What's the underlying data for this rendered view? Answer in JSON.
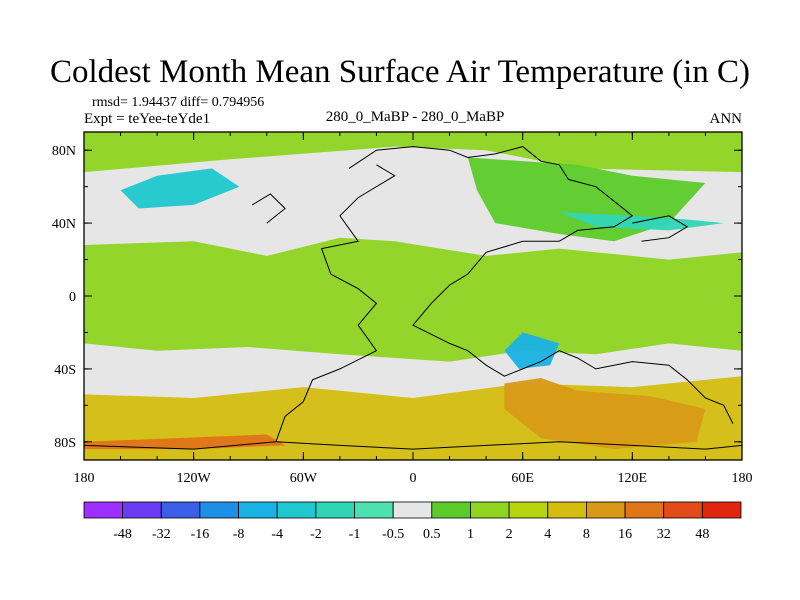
{
  "chart_data": {
    "type": "heatmap",
    "title": "Coldest Month Mean Surface Air Temperature (in C)",
    "stats": "rmsd= 1.94437 diff= 0.794956",
    "experiment": "Expt = teYee-teYde1",
    "center_label": "280_0_MaBP - 280_0_MaBP",
    "season": "ANN",
    "x_ticks": [
      {
        "value": -180,
        "label": "180"
      },
      {
        "value": -120,
        "label": "120W"
      },
      {
        "value": -60,
        "label": "60W"
      },
      {
        "value": 0,
        "label": "0"
      },
      {
        "value": 60,
        "label": "60E"
      },
      {
        "value": 120,
        "label": "120E"
      },
      {
        "value": 180,
        "label": "180"
      }
    ],
    "y_ticks": [
      {
        "value": 80,
        "label": "80N"
      },
      {
        "value": 40,
        "label": "40N"
      },
      {
        "value": 0,
        "label": "0"
      },
      {
        "value": -40,
        "label": "40S"
      },
      {
        "value": -80,
        "label": "80S"
      }
    ],
    "xlim": [
      -180,
      180
    ],
    "ylim": [
      -90,
      90
    ],
    "colorbar": {
      "labels": [
        "-48",
        "-32",
        "-16",
        "-8",
        "-4",
        "-2",
        "-1",
        "-0.5",
        "0.5",
        "1",
        "2",
        "4",
        "8",
        "16",
        "32",
        "48"
      ],
      "colors": [
        "#9b30ff",
        "#6a3df2",
        "#3a5ee8",
        "#1e8fe6",
        "#19b2e5",
        "#1fc7cf",
        "#2fd6b6",
        "#4ee0b0",
        "#e6e6e6",
        "#5ccc2a",
        "#8ed420",
        "#b7d40f",
        "#d4bd10",
        "#d89a16",
        "#e07419",
        "#e24a18",
        "#e0260f"
      ]
    },
    "regions": [
      {
        "label": "Northern ocean band",
        "color": "#8ed420",
        "points": [
          [
            -180,
            90
          ],
          [
            180,
            90
          ],
          [
            180,
            68
          ],
          [
            90,
            70
          ],
          [
            40,
            80
          ],
          [
            -10,
            82
          ],
          [
            -100,
            75
          ],
          [
            -180,
            68
          ]
        ]
      },
      {
        "label": "Tropical ocean band",
        "color": "#8ed420",
        "points": [
          [
            -180,
            28
          ],
          [
            -120,
            30
          ],
          [
            -80,
            22
          ],
          [
            -40,
            32
          ],
          [
            -10,
            30
          ],
          [
            40,
            22
          ],
          [
            80,
            26
          ],
          [
            140,
            20
          ],
          [
            180,
            24
          ],
          [
            180,
            -30
          ],
          [
            140,
            -26
          ],
          [
            100,
            -32
          ],
          [
            60,
            -30
          ],
          [
            20,
            -36
          ],
          [
            -40,
            -32
          ],
          [
            -90,
            -28
          ],
          [
            -140,
            -30
          ],
          [
            -180,
            -26
          ]
        ]
      },
      {
        "label": "Southern warm band",
        "color": "#d4bd10",
        "points": [
          [
            -180,
            -54
          ],
          [
            -120,
            -56
          ],
          [
            -60,
            -50
          ],
          [
            0,
            -56
          ],
          [
            60,
            -48
          ],
          [
            120,
            -50
          ],
          [
            180,
            -44
          ],
          [
            180,
            -90
          ],
          [
            -180,
            -90
          ]
        ]
      },
      {
        "label": "Southern hot patch",
        "color": "#d89a16",
        "points": [
          [
            50,
            -48
          ],
          [
            70,
            -45
          ],
          [
            90,
            -52
          ],
          [
            130,
            -55
          ],
          [
            160,
            -62
          ],
          [
            155,
            -80
          ],
          [
            110,
            -84
          ],
          [
            70,
            -78
          ],
          [
            50,
            -62
          ]
        ]
      },
      {
        "label": "Antarctic edge",
        "color": "#e07419",
        "points": [
          [
            -180,
            -80
          ],
          [
            -80,
            -76
          ],
          [
            -70,
            -82
          ],
          [
            -120,
            -84
          ],
          [
            -180,
            -84
          ]
        ]
      },
      {
        "label": "Pacific cold patch",
        "color": "#1fc7cf",
        "points": [
          [
            -160,
            58
          ],
          [
            -140,
            66
          ],
          [
            -110,
            70
          ],
          [
            -95,
            60
          ],
          [
            -120,
            50
          ],
          [
            -150,
            48
          ]
        ]
      },
      {
        "label": "Indian cold patch",
        "color": "#19b2e5",
        "points": [
          [
            50,
            -30
          ],
          [
            60,
            -20
          ],
          [
            80,
            -26
          ],
          [
            75,
            -38
          ],
          [
            58,
            -40
          ]
        ]
      },
      {
        "label": "Asian warm continent",
        "color": "#5ccc2a",
        "points": [
          [
            30,
            76
          ],
          [
            90,
            72
          ],
          [
            120,
            66
          ],
          [
            160,
            62
          ],
          [
            140,
            40
          ],
          [
            110,
            30
          ],
          [
            80,
            34
          ],
          [
            45,
            40
          ],
          [
            35,
            58
          ]
        ]
      },
      {
        "label": "North Atlantic cold streak",
        "color": "#2fd6b6",
        "points": [
          [
            80,
            46
          ],
          [
            120,
            44
          ],
          [
            150,
            42
          ],
          [
            170,
            40
          ],
          [
            140,
            36
          ],
          [
            100,
            38
          ]
        ]
      }
    ],
    "coastlines": [
      [
        [
          -20,
          72
        ],
        [
          -10,
          66
        ],
        [
          -30,
          54
        ],
        [
          -40,
          44
        ],
        [
          -30,
          30
        ],
        [
          -50,
          26
        ],
        [
          -45,
          12
        ],
        [
          -30,
          4
        ],
        [
          -20,
          -4
        ],
        [
          -30,
          -16
        ],
        [
          -20,
          -30
        ],
        [
          -40,
          -40
        ],
        [
          -55,
          -46
        ],
        [
          -60,
          -58
        ],
        [
          -70,
          -66
        ],
        [
          -75,
          -80
        ]
      ],
      [
        [
          -35,
          70
        ],
        [
          -20,
          80
        ],
        [
          0,
          82
        ],
        [
          20,
          80
        ],
        [
          30,
          76
        ],
        [
          45,
          78
        ],
        [
          60,
          82
        ],
        [
          70,
          74
        ],
        [
          80,
          72
        ],
        [
          85,
          64
        ],
        [
          100,
          60
        ],
        [
          110,
          52
        ],
        [
          120,
          44
        ],
        [
          110,
          38
        ],
        [
          90,
          36
        ],
        [
          80,
          30
        ],
        [
          60,
          30
        ],
        [
          40,
          24
        ],
        [
          30,
          12
        ],
        [
          20,
          6
        ],
        [
          10,
          -4
        ],
        [
          0,
          -16
        ],
        [
          20,
          -26
        ],
        [
          30,
          -30
        ],
        [
          40,
          -38
        ],
        [
          50,
          -44
        ],
        [
          60,
          -40
        ],
        [
          70,
          -36
        ],
        [
          80,
          -30
        ],
        [
          90,
          -34
        ],
        [
          100,
          -40
        ],
        [
          120,
          -36
        ],
        [
          140,
          -38
        ],
        [
          150,
          -46
        ],
        [
          160,
          -56
        ],
        [
          170,
          -60
        ],
        [
          175,
          -70
        ]
      ],
      [
        [
          -75,
          -80
        ],
        [
          -40,
          -82
        ],
        [
          0,
          -84
        ],
        [
          40,
          -82
        ],
        [
          80,
          -80
        ],
        [
          120,
          -82
        ],
        [
          160,
          -84
        ],
        [
          180,
          -82
        ]
      ],
      [
        [
          -180,
          -82
        ],
        [
          -120,
          -84
        ],
        [
          -75,
          -80
        ]
      ],
      [
        [
          120,
          40
        ],
        [
          140,
          44
        ],
        [
          150,
          38
        ],
        [
          140,
          32
        ],
        [
          125,
          30
        ]
      ],
      [
        [
          -80,
          40
        ],
        [
          -70,
          48
        ],
        [
          -78,
          56
        ],
        [
          -88,
          50
        ]
      ]
    ]
  }
}
